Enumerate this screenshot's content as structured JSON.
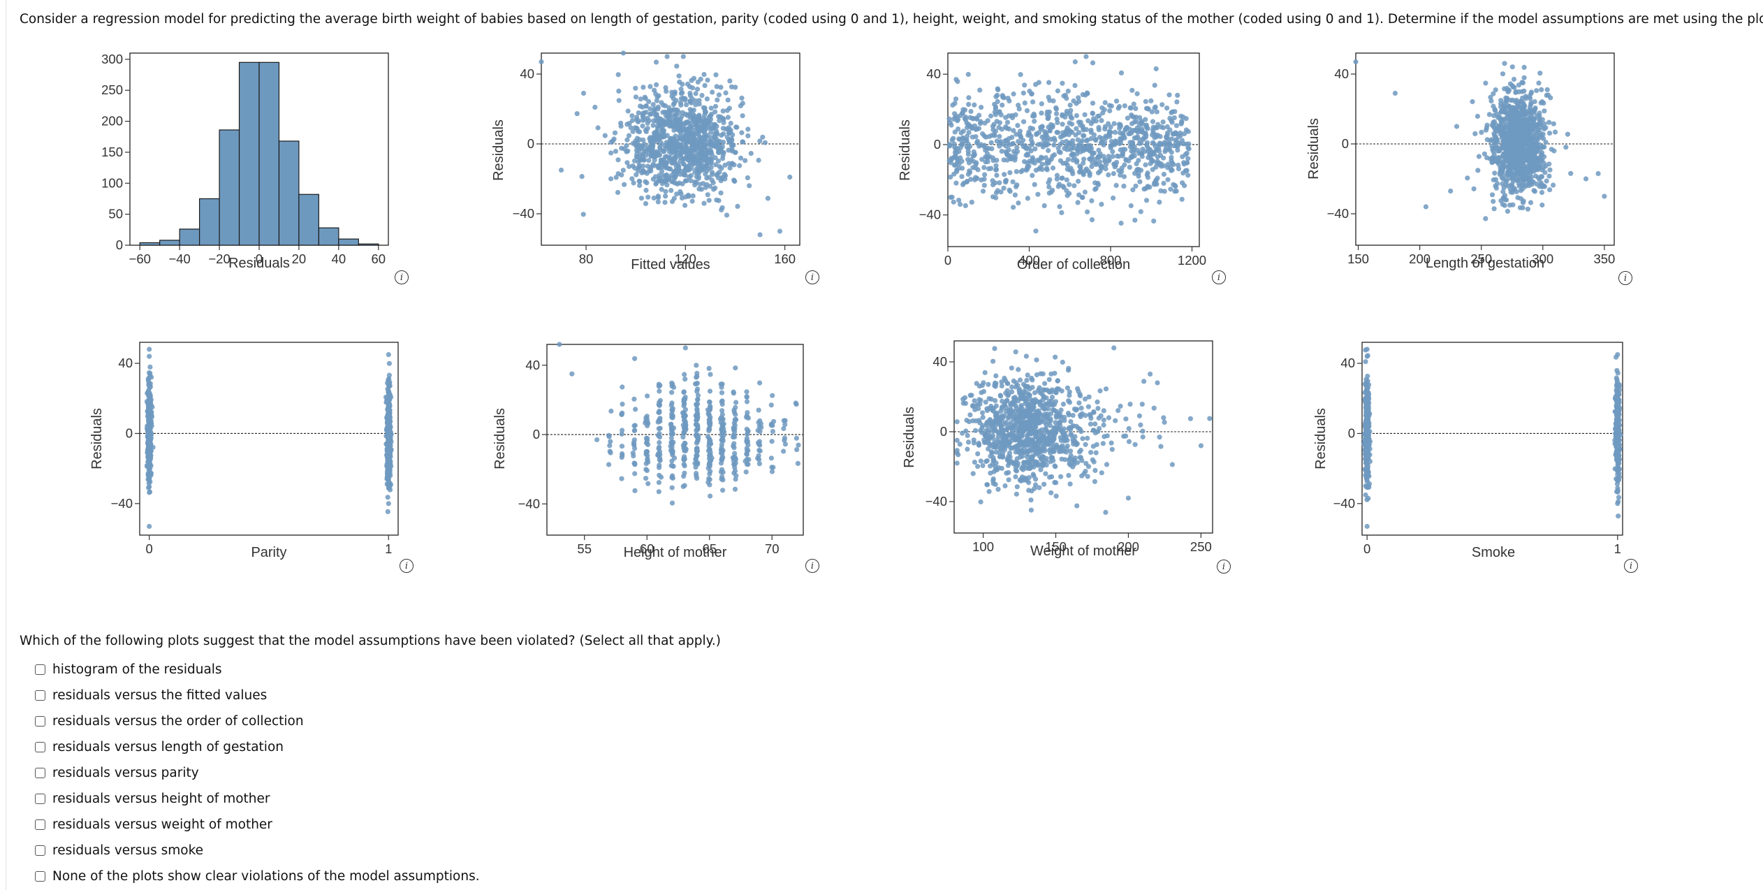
{
  "question": "Consider a regression model for predicting the average birth weight of babies based on length of gestation, parity (coded using 0 and 1), height, weight, and smoking status of the mother (coded using 0 and 1). Determine if the model assumptions are met using the plots below.",
  "colors": {
    "bar_fill": "#6e99bf",
    "point": "#6e99bf",
    "frame": "#222222"
  },
  "info_icon": "info-icon",
  "chart_data": [
    {
      "id": "hist",
      "type": "bar",
      "xlabel": "Residuals",
      "ylabel": "",
      "xlim": [
        -65,
        65
      ],
      "ylim": [
        0,
        310
      ],
      "xticks": [
        "-60",
        "-40",
        "-20",
        "0",
        "20",
        "40",
        "60"
      ],
      "yticks": [
        "0",
        "50",
        "100",
        "150",
        "200",
        "250",
        "300"
      ],
      "bin_edges": [
        -60,
        -50,
        -40,
        -30,
        -20,
        -10,
        0,
        10,
        20,
        30,
        40,
        50,
        60
      ],
      "values": [
        4,
        8,
        26,
        75,
        186,
        295,
        295,
        168,
        82,
        28,
        10,
        2
      ]
    },
    {
      "id": "fitted",
      "type": "scatter",
      "xlabel": "Fitted values",
      "ylabel": "Residuals",
      "xlim": [
        62,
        166
      ],
      "ylim": [
        -58,
        52
      ],
      "xticks": [
        "80",
        "120",
        "160"
      ],
      "yticks": [
        "-40",
        "0",
        "40"
      ],
      "pattern": "cloud centered near 118, spread about 12, plus a few outliers",
      "cloud": {
        "center": 118,
        "spread": 12,
        "n": 1000
      },
      "outliers": [
        [
          62,
          47
        ],
        [
          79,
          29
        ],
        [
          95,
          52
        ],
        [
          150,
          -52
        ],
        [
          158,
          -50
        ],
        [
          162,
          -19
        ],
        [
          70,
          -15
        ],
        [
          90,
          -20
        ]
      ]
    },
    {
      "id": "order",
      "type": "scatter",
      "xlabel": "Order of collection",
      "ylabel": "Residuals",
      "xlim": [
        0,
        1236
      ],
      "ylim": [
        -58,
        52
      ],
      "xticks": [
        "0",
        "400",
        "800",
        "1200"
      ],
      "yticks": [
        "-40",
        "0",
        "40"
      ],
      "pattern": "uniform band across the full order range",
      "n": 1000
    },
    {
      "id": "gestation",
      "type": "scatter",
      "xlabel": "Length of gestation",
      "ylabel": "Residuals",
      "xlim": [
        148,
        358
      ],
      "ylim": [
        -58,
        52
      ],
      "xticks": [
        "150",
        "200",
        "250",
        "300",
        "350"
      ],
      "yticks": [
        "-40",
        "0",
        "40"
      ],
      "pattern": "cloud centered near 280, spread about 12, plus a few outliers",
      "cloud": {
        "center": 280,
        "spread": 12,
        "n": 1000
      },
      "outliers": [
        [
          148,
          47
        ],
        [
          180,
          29
        ],
        [
          205,
          -36
        ],
        [
          335,
          -20
        ],
        [
          350,
          -30
        ],
        [
          345,
          -17
        ],
        [
          225,
          -27
        ],
        [
          230,
          10
        ]
      ]
    },
    {
      "id": "parity",
      "type": "scatter",
      "xlabel": "Parity",
      "ylabel": "Residuals",
      "xlim": [
        -0.04,
        1.04
      ],
      "ylim": [
        -58,
        52
      ],
      "xticks": [
        "0",
        "1"
      ],
      "yticks": [
        "-40",
        "0",
        "40"
      ],
      "pattern": "two vertical strips at 0 and 1"
    },
    {
      "id": "height",
      "type": "scatter",
      "xlabel": "Height of mother",
      "ylabel": "Residuals",
      "xlim": [
        52,
        72.5
      ],
      "ylim": [
        -58,
        52
      ],
      "xticks": [
        "55",
        "60",
        "65",
        "70"
      ],
      "yticks": [
        "-40",
        "0",
        "40"
      ],
      "pattern": "vertical columns at each whole inch from 57 to 72",
      "columns": [
        57,
        58,
        59,
        60,
        61,
        62,
        63,
        64,
        65,
        66,
        67,
        68,
        69,
        70,
        71,
        72
      ],
      "outliers": [
        [
          53,
          52
        ],
        [
          54,
          35
        ],
        [
          56,
          -3
        ]
      ]
    },
    {
      "id": "weight",
      "type": "scatter",
      "xlabel": "Weight of mother",
      "ylabel": "Residuals",
      "xlim": [
        80,
        258
      ],
      "ylim": [
        -58,
        52
      ],
      "xticks": [
        "100",
        "150",
        "200",
        "250"
      ],
      "yticks": [
        "-40",
        "0",
        "40"
      ],
      "pattern": "dense cloud centered near 125, right skewed toward 250",
      "cloud": {
        "center": 125,
        "spread": 18,
        "n": 1000
      },
      "outliers": [
        [
          250,
          -8
        ],
        [
          215,
          33
        ],
        [
          220,
          28
        ],
        [
          210,
          -3
        ],
        [
          200,
          -38
        ],
        [
          190,
          48
        ]
      ]
    },
    {
      "id": "smoke",
      "type": "scatter",
      "xlabel": "Smoke",
      "ylabel": "Residuals",
      "xlim": [
        -0.02,
        1.02
      ],
      "ylim": [
        -58,
        52
      ],
      "xticks": [
        "0",
        "1"
      ],
      "yticks": [
        "-40",
        "0",
        "40"
      ],
      "pattern": "two vertical strips at 0 and 1"
    }
  ],
  "prompt": "Which of the following plots suggest that the model assumptions have been violated? (Select all that apply.)",
  "options": [
    "histogram of the residuals",
    "residuals versus the fitted values",
    "residuals versus the order of collection",
    "residuals versus length of gestation",
    "residuals versus parity",
    "residuals versus height of mother",
    "residuals versus weight of mother",
    "residuals versus smoke",
    "None of the plots show clear violations of the model assumptions."
  ]
}
